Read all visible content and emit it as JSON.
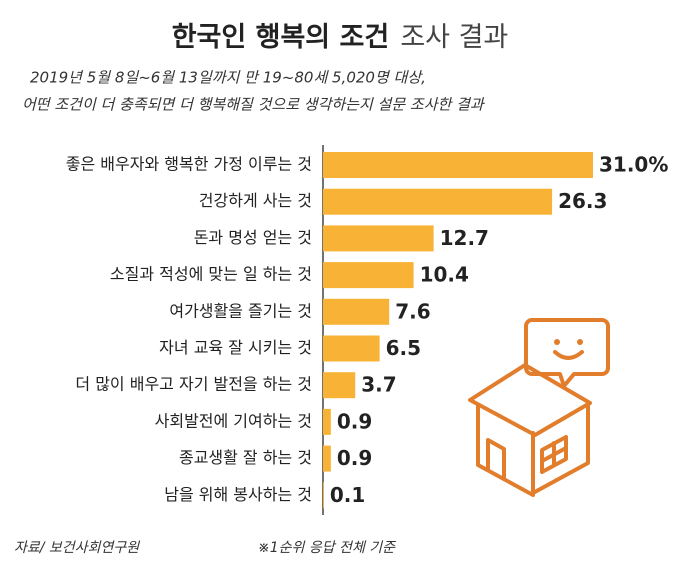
{
  "chart_data": {
    "type": "hbar",
    "title": [
      "한국인 행복의 조건",
      "조사 결과"
    ],
    "subtitle": [
      "2019년 5월 8일~6월 13일까지 만 19~80세 5,020명 대상,",
      "어떤 조건이 더 충족되면 더 행복해질 것으로 생각하는지 설문 조사한 결과"
    ],
    "categories": [
      "좋은 배우자와 행복한 가정 이루는 것",
      "건강하게 사는 것",
      "돈과 명성 얻는 것",
      "소질과 적성에 맞는 일 하는 것",
      "여가생활을 즐기는 것",
      "자녀 교육 잘 시키는 것",
      "더 많이 배우고 자기 발전을 하는 것",
      "사회발전에 기여하는 것",
      "종교생활 잘 하는 것",
      "남을 위해 봉사하는 것"
    ],
    "values": [
      31.0,
      26.3,
      12.7,
      10.4,
      7.6,
      6.5,
      3.7,
      0.9,
      0.9,
      0.1
    ],
    "value_labels": [
      "31.0%",
      "26.3",
      "12.7",
      "10.4",
      "7.6",
      "6.5",
      "3.7",
      "0.9",
      "0.9",
      "0.1"
    ],
    "color": "#f8b336",
    "source": "자료/ 보건사회연구원",
    "note": "※1순위 응답 전체 기준"
  }
}
